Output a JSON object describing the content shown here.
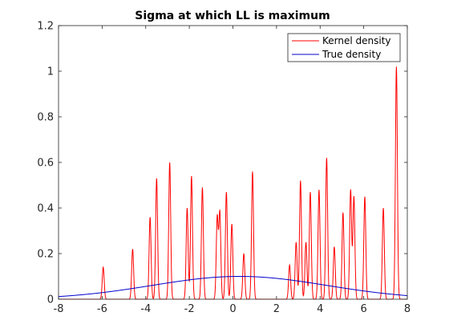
{
  "chart_data": {
    "type": "line",
    "title": "Sigma at which LL is maximum",
    "xlabel": "",
    "ylabel": "",
    "xlim": [
      -8,
      8
    ],
    "ylim": [
      0,
      1.2
    ],
    "x_ticks": [
      -8,
      -6,
      -4,
      -2,
      0,
      2,
      4,
      6,
      8
    ],
    "y_ticks": [
      0,
      0.2,
      0.4,
      0.6,
      0.8,
      1,
      1.2
    ],
    "y_tick_labels": [
      "0",
      "0.2",
      "0.4",
      "0.6",
      "0.8",
      "1",
      "1.2"
    ],
    "grid": false,
    "legend_position": "top-right",
    "series": [
      {
        "name": "Kernel density",
        "color": "#ff0000",
        "kind": "kernel",
        "bandwidth": 0.045,
        "peaks": [
          {
            "x": -5.95,
            "y": 0.14
          },
          {
            "x": -4.6,
            "y": 0.22
          },
          {
            "x": -3.8,
            "y": 0.36
          },
          {
            "x": -3.5,
            "y": 0.53
          },
          {
            "x": -2.9,
            "y": 0.6
          },
          {
            "x": -2.1,
            "y": 0.4
          },
          {
            "x": -1.9,
            "y": 0.54
          },
          {
            "x": -1.4,
            "y": 0.49
          },
          {
            "x": -0.72,
            "y": 0.36
          },
          {
            "x": -0.6,
            "y": 0.38
          },
          {
            "x": -0.3,
            "y": 0.47
          },
          {
            "x": -0.05,
            "y": 0.33
          },
          {
            "x": 0.5,
            "y": 0.2
          },
          {
            "x": 0.9,
            "y": 0.56
          },
          {
            "x": 2.6,
            "y": 0.15
          },
          {
            "x": 2.9,
            "y": 0.25
          },
          {
            "x": 3.1,
            "y": 0.52
          },
          {
            "x": 3.35,
            "y": 0.25
          },
          {
            "x": 3.55,
            "y": 0.47
          },
          {
            "x": 3.95,
            "y": 0.48
          },
          {
            "x": 4.3,
            "y": 0.62
          },
          {
            "x": 4.65,
            "y": 0.23
          },
          {
            "x": 5.05,
            "y": 0.38
          },
          {
            "x": 5.4,
            "y": 0.48
          },
          {
            "x": 5.55,
            "y": 0.45
          },
          {
            "x": 6.05,
            "y": 0.45
          },
          {
            "x": 6.9,
            "y": 0.4
          },
          {
            "x": 7.5,
            "y": 1.02
          }
        ]
      },
      {
        "name": "True density",
        "color": "#0000cc",
        "kind": "gaussian",
        "mean": 0.3,
        "sd": 4,
        "peak": 0.1
      }
    ]
  }
}
